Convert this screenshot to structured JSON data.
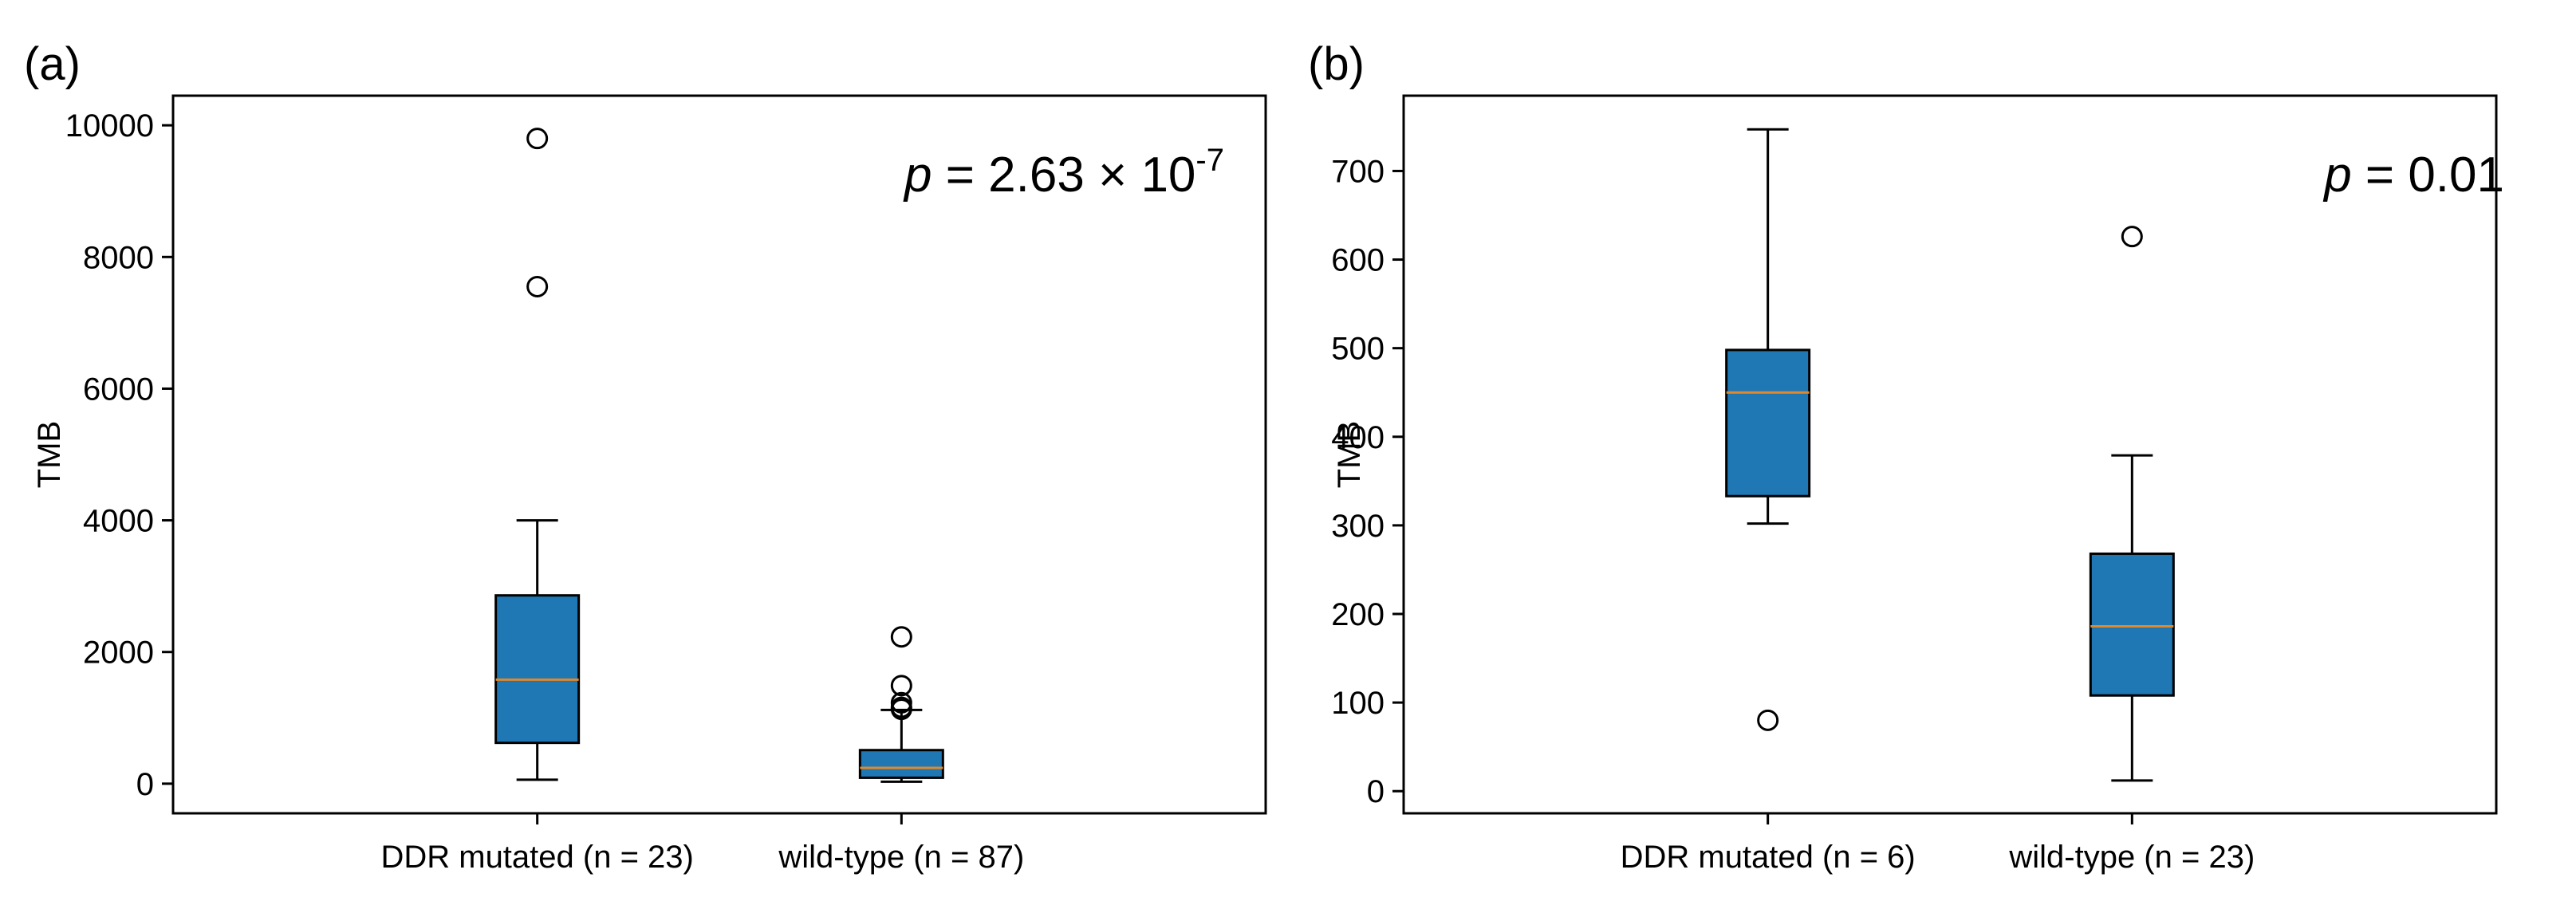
{
  "figure": {
    "description_text_only": false
  },
  "chart_data": [
    {
      "type": "boxplot",
      "panel_label": "(a)",
      "ylabel": "TMB",
      "ylim": [
        -450,
        10450
      ],
      "yticks": [
        0,
        2000,
        4000,
        6000,
        8000,
        10000
      ],
      "ytick_labels": [
        "0",
        "2000",
        "4000",
        "6000",
        "8000",
        "10000"
      ],
      "annotation": {
        "p_symbol": "p",
        "text": "= 2.63 × 10",
        "exponent": "-7"
      },
      "box_color": "#1f77b4",
      "median_color": "#e0882a",
      "categories": [
        "DDR mutated (n = 23)",
        "wild-type (n = 87)"
      ],
      "boxes": [
        {
          "label": "DDR mutated (n = 23)",
          "q1": 620,
          "median": 1580,
          "q3": 2860,
          "whisker_low": 60,
          "whisker_high": 4000,
          "outliers": [
            7550,
            9800
          ]
        },
        {
          "label": "wild-type (n = 87)",
          "q1": 90,
          "median": 240,
          "q3": 510,
          "whisker_low": 30,
          "whisker_high": 1120,
          "outliers": [
            1130,
            1160,
            1230,
            1490,
            2230
          ]
        }
      ]
    },
    {
      "type": "boxplot",
      "panel_label": "(b)",
      "ylabel": "TMB",
      "ylim": [
        -25,
        785
      ],
      "yticks": [
        0,
        100,
        200,
        300,
        400,
        500,
        600,
        700
      ],
      "ytick_labels": [
        "0",
        "100",
        "200",
        "300",
        "400",
        "500",
        "600",
        "700"
      ],
      "annotation": {
        "p_symbol": "p",
        "text": "= 0.01",
        "exponent": ""
      },
      "box_color": "#1f77b4",
      "median_color": "#e0882a",
      "categories": [
        "DDR mutated (n = 6)",
        "wild-type (n = 23)"
      ],
      "boxes": [
        {
          "label": "DDR mutated (n = 6)",
          "q1": 333,
          "median": 450,
          "q3": 498,
          "whisker_low": 302,
          "whisker_high": 747,
          "outliers": [
            80
          ]
        },
        {
          "label": "wild-type (n = 23)",
          "q1": 108,
          "median": 186,
          "q3": 268,
          "whisker_low": 12,
          "whisker_high": 379,
          "outliers": [
            626
          ]
        }
      ]
    }
  ]
}
